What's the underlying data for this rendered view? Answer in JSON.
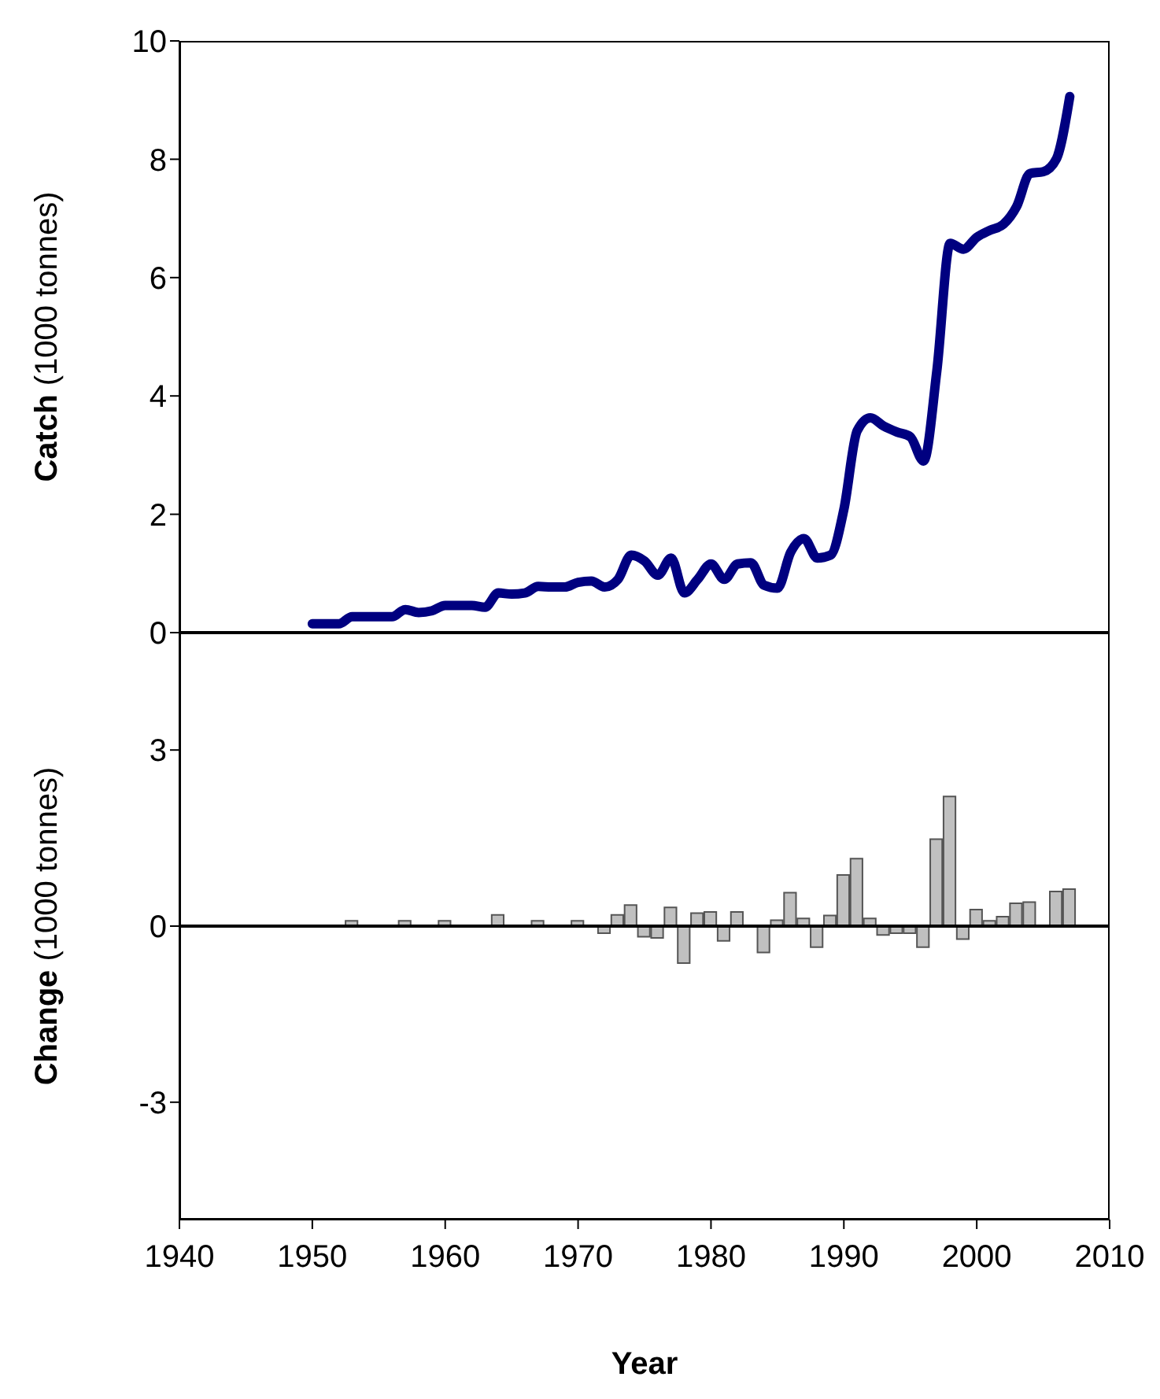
{
  "chart_data": [
    {
      "type": "line",
      "ylabel": "Catch (1000 tonnes)",
      "xlim": [
        1940,
        2010
      ],
      "ylim": [
        0,
        10
      ],
      "yticks": [
        0,
        2,
        4,
        6,
        8,
        10
      ],
      "tick_labels": "y",
      "marker": "none",
      "line_style": "solid",
      "series": [
        {
          "color": "#000080",
          "x": [
            1950,
            1951,
            1952,
            1953,
            1954,
            1955,
            1956,
            1957,
            1958,
            1959,
            1960,
            1961,
            1962,
            1963,
            1964,
            1965,
            1966,
            1967,
            1968,
            1969,
            1970,
            1971,
            1972,
            1973,
            1974,
            1975,
            1976,
            1977,
            1978,
            1979,
            1980,
            1981,
            1982,
            1983,
            1984,
            1985,
            1986,
            1987,
            1988,
            1989,
            1990,
            1991,
            1992,
            1993,
            1994,
            1995,
            1996,
            1997,
            1998,
            1999,
            2000,
            2001,
            2002,
            2003,
            2004,
            2005,
            2006,
            2007
          ],
          "values": [
            0.15,
            0.15,
            0.15,
            0.27,
            0.27,
            0.27,
            0.27,
            0.39,
            0.34,
            0.37,
            0.46,
            0.46,
            0.46,
            0.43,
            0.67,
            0.65,
            0.67,
            0.78,
            0.77,
            0.77,
            0.85,
            0.87,
            0.77,
            0.9,
            1.31,
            1.21,
            0.97,
            1.26,
            0.67,
            0.9,
            1.16,
            0.9,
            1.16,
            1.18,
            0.8,
            0.75,
            1.36,
            1.59,
            1.26,
            1.31,
            2.08,
            3.41,
            3.63,
            3.49,
            3.39,
            3.31,
            2.9,
            4.43,
            6.58,
            6.48,
            6.68,
            6.8,
            6.9,
            7.2,
            7.76,
            7.79,
            8.01,
            9.06
          ]
        }
      ]
    },
    {
      "type": "bar",
      "ylabel": "Change (1000 tonnes)",
      "xlabel": "Year",
      "xlim": [
        1940,
        2010
      ],
      "xticks": [
        1940,
        1950,
        1960,
        1970,
        1980,
        1990,
        2000,
        2010
      ],
      "ylim": [
        -5,
        5
      ],
      "yticks": [
        -3,
        0,
        3
      ],
      "ref_lines": [
        {
          "axis": "y",
          "value": 0,
          "color": "#000000"
        }
      ],
      "series": [
        {
          "color": "#c0c0c0",
          "x": [
            1953,
            1957,
            1960,
            1964,
            1967,
            1970,
            1972,
            1973,
            1974,
            1975,
            1976,
            1977,
            1978,
            1979,
            1980,
            1981,
            1982,
            1984,
            1985,
            1986,
            1987,
            1988,
            1989,
            1990,
            1991,
            1992,
            1993,
            1994,
            1995,
            1996,
            1997,
            1998,
            1999,
            2000,
            2001,
            2002,
            2003,
            2004,
            2006,
            2007
          ],
          "values": [
            0.09,
            0.09,
            0.09,
            0.19,
            0.09,
            0.09,
            -0.12,
            0.19,
            0.36,
            -0.18,
            -0.2,
            0.32,
            -0.63,
            0.22,
            0.24,
            -0.25,
            0.24,
            -0.45,
            0.1,
            0.57,
            0.13,
            -0.36,
            0.18,
            0.87,
            1.15,
            0.13,
            -0.15,
            -0.12,
            -0.12,
            -0.36,
            1.48,
            2.21,
            -0.22,
            0.28,
            0.09,
            0.16,
            0.39,
            0.41,
            0.59,
            0.63
          ]
        }
      ]
    }
  ]
}
